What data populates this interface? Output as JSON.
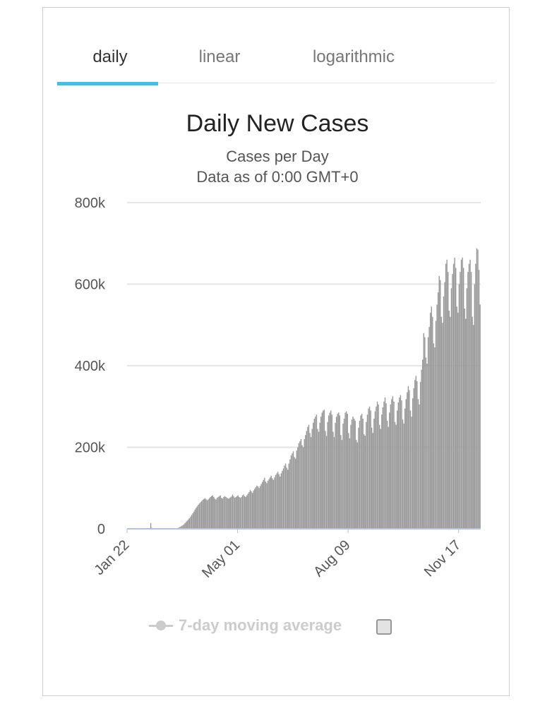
{
  "tabs": [
    {
      "label": "daily",
      "active": true
    },
    {
      "label": "linear",
      "active": false
    },
    {
      "label": "logarithmic",
      "active": false
    }
  ],
  "legend": {
    "label": "7-day moving average",
    "checked": false
  },
  "colors": {
    "accent": "#3ec1e8",
    "bars": "#999999",
    "grid": "#e6e6e6",
    "baseline": "#b0c4de",
    "legend_disabled": "#cccccc"
  },
  "chart_data": {
    "type": "bar",
    "title": "Daily New Cases",
    "subtitle": [
      "Cases per Day",
      "Data as of 0:00 GMT+0"
    ],
    "y_ticks": [
      "0",
      "200k",
      "400k",
      "600k",
      "800k"
    ],
    "ylim": [
      0,
      800000
    ],
    "x_ticks": [
      {
        "label": "Jan 22",
        "day": 0
      },
      {
        "label": "May 01",
        "day": 100
      },
      {
        "label": "Aug 09",
        "day": 200
      },
      {
        "label": "Nov 17",
        "day": 300
      }
    ],
    "x_start": "Jan 22",
    "grid": true,
    "series": [
      {
        "values": [
          600,
          0,
          0,
          0,
          0,
          0,
          0,
          0,
          0,
          0,
          0,
          0,
          0,
          0,
          0,
          0,
          0,
          0,
          0,
          0,
          0,
          14000,
          2500,
          0,
          0,
          0,
          0,
          0,
          0,
          0,
          0,
          0,
          0,
          0,
          0,
          0,
          0,
          0,
          0,
          0,
          0,
          0,
          0,
          0,
          500,
          1500,
          2500,
          4000,
          5500,
          7000,
          9000,
          11000,
          14000,
          17000,
          20000,
          23000,
          26000,
          30000,
          34000,
          38000,
          42000,
          47000,
          51000,
          55000,
          59000,
          62000,
          65000,
          68000,
          71000,
          73000,
          75000,
          73000,
          70000,
          72000,
          75000,
          78000,
          80000,
          82000,
          78000,
          74000,
          72000,
          76000,
          78000,
          80000,
          82000,
          76000,
          74000,
          78000,
          80000,
          78000,
          76000,
          74000,
          75000,
          77000,
          79000,
          84000,
          80000,
          76000,
          78000,
          80000,
          82000,
          78000,
          76000,
          78000,
          82000,
          84000,
          80000,
          78000,
          82000,
          86000,
          90000,
          95000,
          92000,
          88000,
          94000,
          98000,
          102000,
          106000,
          104000,
          100000,
          105000,
          110000,
          115000,
          120000,
          125000,
          116000,
          112000,
          118000,
          122000,
          126000,
          130000,
          124000,
          120000,
          126000,
          132000,
          136000,
          140000,
          134000,
          128000,
          136000,
          142000,
          148000,
          155000,
          160000,
          150000,
          145000,
          160000,
          170000,
          180000,
          185000,
          190000,
          176000,
          172000,
          192000,
          200000,
          210000,
          215000,
          220000,
          205000,
          200000,
          220000,
          230000,
          240000,
          250000,
          255000,
          235000,
          225000,
          245000,
          260000,
          270000,
          275000,
          280000,
          245000,
          238000,
          260000,
          275000,
          285000,
          290000,
          292000,
          240000,
          228000,
          262000,
          278000,
          285000,
          290000,
          280000,
          238000,
          225000,
          260000,
          275000,
          282000,
          285000,
          278000,
          230000,
          218000,
          258000,
          270000,
          285000,
          288000,
          282000,
          235000,
          222000,
          255000,
          268000,
          275000,
          270000,
          265000,
          218000,
          212000,
          248000,
          265000,
          278000,
          282000,
          270000,
          232000,
          228000,
          262000,
          280000,
          295000,
          300000,
          290000,
          248000,
          235000,
          270000,
          288000,
          300000,
          312000,
          305000,
          255000,
          245000,
          280000,
          298000,
          312000,
          322000,
          308000,
          265000,
          250000,
          285000,
          305000,
          318000,
          325000,
          312000,
          262000,
          255000,
          290000,
          310000,
          322000,
          328000,
          315000,
          268000,
          258000,
          295000,
          318000,
          335000,
          350000,
          340000,
          290000,
          275000,
          320000,
          345000,
          365000,
          375000,
          362000,
          318000,
          305000,
          360000,
          390000,
          415000,
          480000,
          470000,
          420000,
          405000,
          470000,
          495000,
          530000,
          545000,
          520000,
          455000,
          445000,
          510000,
          550000,
          580000,
          620000,
          610000,
          520000,
          505000,
          570000,
          605000,
          650000,
          660000,
          630000,
          535000,
          520000,
          590000,
          625000,
          650000,
          665000,
          640000,
          545000,
          530000,
          600000,
          630000,
          660000,
          665000,
          640000,
          540000,
          515000,
          590000,
          630000,
          650000,
          660000,
          630000,
          520000,
          500000,
          600000,
          650000,
          688000,
          685000,
          635000,
          550000
        ]
      }
    ]
  }
}
